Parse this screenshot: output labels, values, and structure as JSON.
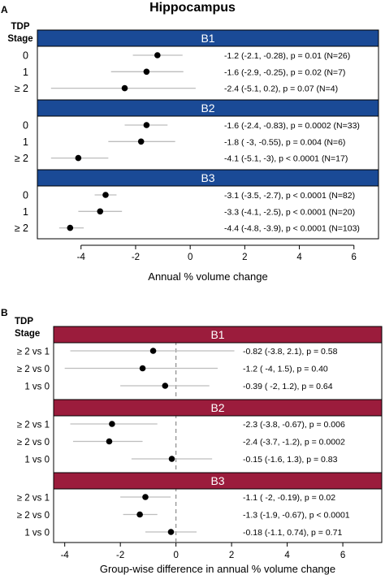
{
  "title": "Hippocampus",
  "colors": {
    "panel_a_band": "#1a4a96",
    "panel_b_band": "#9b1c3c",
    "ci_line": "#bdbdbd",
    "point": "#000000",
    "zero_line": "#8c8c8c"
  },
  "chart_data": [
    {
      "panel": "A",
      "type": "forest",
      "row_header": [
        "TDP",
        "Stage"
      ],
      "xlabel": "Annual % volume change",
      "xlim": [
        -5.6,
        6.9
      ],
      "xticks": [
        -4,
        -2,
        0,
        2,
        4,
        6
      ],
      "reference_line": null,
      "groups": [
        {
          "name": "B1",
          "rows": [
            {
              "label": "0",
              "est": -1.2,
              "lo": -2.1,
              "hi": -0.28,
              "text": "-1.2 (-2.1, -0.28), p = 0.01 (N=26)"
            },
            {
              "label": "1",
              "est": -1.6,
              "lo": -2.9,
              "hi": -0.25,
              "text": "-1.6 (-2.9, -0.25), p = 0.02 (N=7)"
            },
            {
              "label": "≥ 2",
              "est": -2.4,
              "lo": -5.1,
              "hi": 0.2,
              "text": "-2.4 (-5.1, 0.2), p = 0.07 (N=4)"
            }
          ]
        },
        {
          "name": "B2",
          "rows": [
            {
              "label": "0",
              "est": -1.6,
              "lo": -2.4,
              "hi": -0.83,
              "text": "-1.6 (-2.4, -0.83), p = 0.0002 (N=33)"
            },
            {
              "label": "1",
              "est": -1.8,
              "lo": -3,
              "hi": -0.55,
              "text": "-1.8 ( -3, -0.55), p = 0.004 (N=6)"
            },
            {
              "label": "≥ 2",
              "est": -4.1,
              "lo": -5.1,
              "hi": -3,
              "text": "-4.1 (-5.1, -3), p < 0.0001 (N=17)"
            }
          ]
        },
        {
          "name": "B3",
          "rows": [
            {
              "label": "0",
              "est": -3.1,
              "lo": -3.5,
              "hi": -2.7,
              "text": "-3.1 (-3.5, -2.7), p < 0.0001 (N=82)"
            },
            {
              "label": "1",
              "est": -3.3,
              "lo": -4.1,
              "hi": -2.5,
              "text": "-3.3 (-4.1, -2.5), p < 0.0001 (N=20)"
            },
            {
              "label": "≥ 2",
              "est": -4.4,
              "lo": -4.8,
              "hi": -3.9,
              "text": "-4.4 (-4.8, -3.9), p < 0.0001 (N=103)"
            }
          ]
        }
      ]
    },
    {
      "panel": "B",
      "type": "forest",
      "row_header": [
        "TDP",
        "Stage"
      ],
      "xlabel": "Group-wise difference in annual % volume change",
      "xlim": [
        -4.4,
        7.4
      ],
      "xticks": [
        -4,
        -2,
        0,
        2,
        4,
        6
      ],
      "reference_line": 0,
      "groups": [
        {
          "name": "B1",
          "rows": [
            {
              "label": "≥ 2 vs 1",
              "est": -0.82,
              "lo": -3.8,
              "hi": 2.1,
              "text": "-0.82 (-3.8, 2.1), p = 0.58"
            },
            {
              "label": "≥ 2 vs 0",
              "est": -1.2,
              "lo": -4,
              "hi": 1.5,
              "text": "-1.2 ( -4, 1.5), p = 0.40"
            },
            {
              "label": "1 vs 0",
              "est": -0.39,
              "lo": -2,
              "hi": 1.2,
              "text": "-0.39 ( -2, 1.2), p = 0.64"
            }
          ]
        },
        {
          "name": "B2",
          "rows": [
            {
              "label": "≥ 2 vs 1",
              "est": -2.3,
              "lo": -3.8,
              "hi": -0.67,
              "text": "-2.3 (-3.8, -0.67), p = 0.006"
            },
            {
              "label": "≥ 2 vs 0",
              "est": -2.4,
              "lo": -3.7,
              "hi": -1.2,
              "text": "-2.4 (-3.7, -1.2), p = 0.0002"
            },
            {
              "label": "1 vs 0",
              "est": -0.15,
              "lo": -1.6,
              "hi": 1.3,
              "text": "-0.15 (-1.6, 1.3), p = 0.83"
            }
          ]
        },
        {
          "name": "B3",
          "rows": [
            {
              "label": "≥ 2 vs 1",
              "est": -1.1,
              "lo": -2,
              "hi": -0.19,
              "text": "-1.1 ( -2, -0.19), p = 0.02"
            },
            {
              "label": "≥ 2 vs 0",
              "est": -1.3,
              "lo": -1.9,
              "hi": -0.67,
              "text": "-1.3 (-1.9, -0.67), p < 0.0001"
            },
            {
              "label": "1 vs 0",
              "est": -0.18,
              "lo": -1.1,
              "hi": 0.74,
              "text": "-0.18 (-1.1, 0.74), p = 0.71"
            }
          ]
        }
      ]
    }
  ]
}
